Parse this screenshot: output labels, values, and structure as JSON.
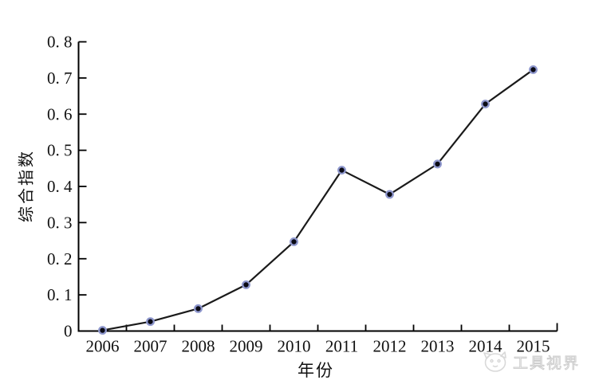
{
  "chart_data": {
    "type": "line",
    "categories": [
      "2006",
      "2007",
      "2008",
      "2009",
      "2010",
      "2011",
      "2012",
      "2013",
      "2014",
      "2015"
    ],
    "series": [
      {
        "name": "综合指数",
        "values": [
          0.002,
          0.026,
          0.062,
          0.128,
          0.247,
          0.445,
          0.378,
          0.462,
          0.628,
          0.723
        ]
      }
    ],
    "title": "",
    "xlabel": "年份",
    "ylabel": "综合指数",
    "ylim": [
      0,
      0.8
    ],
    "ytick_step": 0.1,
    "ytick_labels": [
      "0",
      "0. 1",
      "0. 2",
      "0. 3",
      "0. 4",
      "0. 5",
      "0. 6",
      "0. 7",
      "0. 8"
    ],
    "grid": false,
    "legend_position": "none",
    "line_color": "#1a1a1a",
    "marker_fill": "#0a0a14",
    "marker_ring_color": "#8e97cd",
    "axis_color": "#000000",
    "tick_direction": "in"
  },
  "watermark": {
    "text": "工具视界",
    "logo": "mascot-cat-logo-icon",
    "color": "#d9d9d9"
  }
}
